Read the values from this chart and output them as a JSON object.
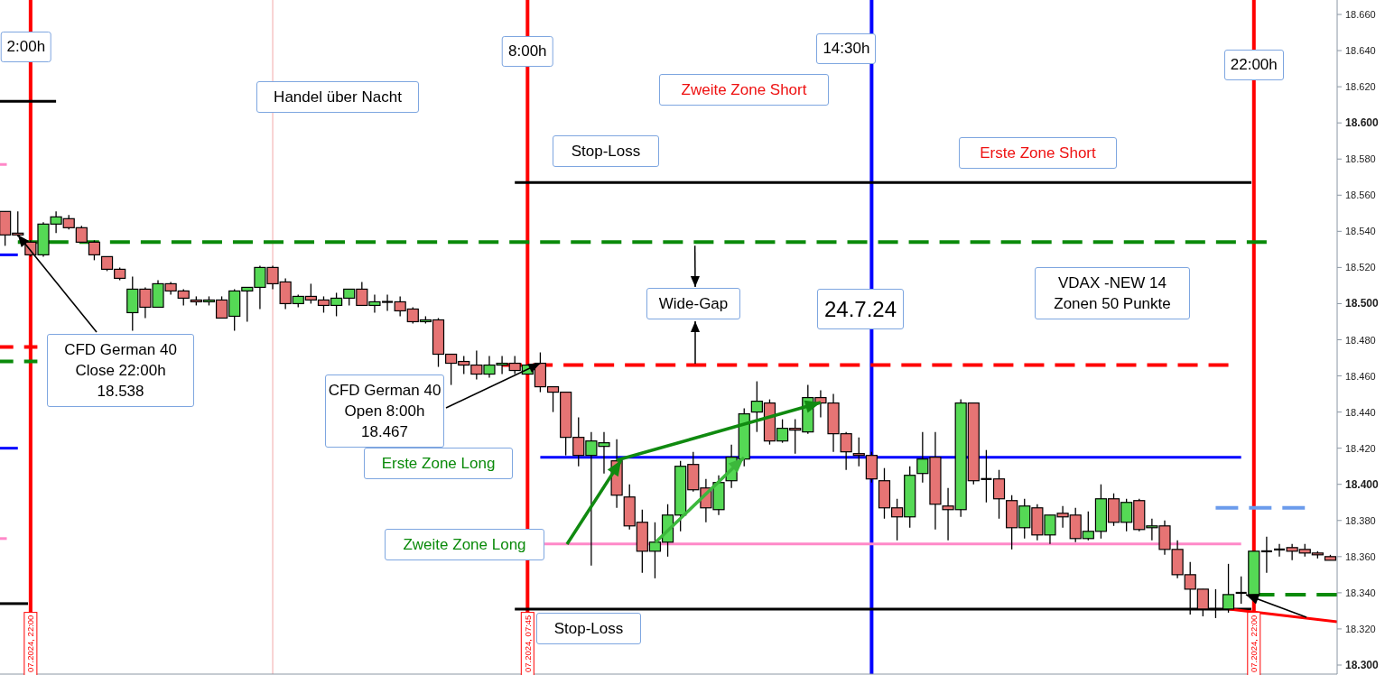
{
  "chart_data": {
    "type": "candlestick",
    "xlim": [
      "2024-07-23T21:24",
      "2024-07-24T23:38"
    ],
    "ylim": [
      18295,
      18668
    ],
    "xticks": [
      {
        "value": "2024-07-23T22:00",
        "label": "07.2024, 22:00"
      },
      {
        "value": "2024-07-24T07:45",
        "label": "07.2024, 07:45"
      },
      {
        "value": "2024-07-24T22:00",
        "label": "07.2024, 22:00"
      }
    ],
    "yticks": [
      {
        "value": 18300,
        "label": "18.300"
      },
      {
        "value": 18320,
        "label": "18.320"
      },
      {
        "value": 18340,
        "label": "18.340"
      },
      {
        "value": 18360,
        "label": "18.360"
      },
      {
        "value": 18380,
        "label": "18.380"
      },
      {
        "value": 18400,
        "label": "18.400"
      },
      {
        "value": 18420,
        "label": "18.420"
      },
      {
        "value": 18440,
        "label": "18.440"
      },
      {
        "value": 18460,
        "label": "18.460"
      },
      {
        "value": 18480,
        "label": "18.480"
      },
      {
        "value": 18500,
        "label": "18.500"
      },
      {
        "value": 18520,
        "label": "18.520"
      },
      {
        "value": 18540,
        "label": "18.540"
      },
      {
        "value": 18560,
        "label": "18.560"
      },
      {
        "value": 18580,
        "label": "18.580"
      },
      {
        "value": 18600,
        "label": "18.600"
      },
      {
        "value": 18620,
        "label": "18.620"
      },
      {
        "value": 18640,
        "label": "18.640"
      },
      {
        "value": 18660,
        "label": "18.660"
      }
    ],
    "series": [
      {
        "type": "line",
        "x": [
          "2024-07-23T21:24",
          "2024-07-23T22:30"
        ],
        "values": [
          18612,
          18612
        ],
        "color": "#000000",
        "line_style": "solid"
      },
      {
        "type": "line",
        "x": [
          "2024-07-23T21:24",
          "2024-07-23T21:32"
        ],
        "values": [
          18577,
          18577
        ],
        "color": "#ff88c8",
        "line_style": "solid"
      },
      {
        "type": "line",
        "x": [
          "2024-07-23T21:24",
          "2024-07-23T21:45"
        ],
        "values": [
          18527,
          18527
        ],
        "color": "#0000ff",
        "line_style": "solid"
      },
      {
        "type": "line",
        "x": [
          "2024-07-23T21:24",
          "2024-07-23T22:08"
        ],
        "values": [
          18476,
          18476
        ],
        "color": "#ff0000",
        "line_style": "dashed"
      },
      {
        "type": "line",
        "x": [
          "2024-07-23T21:24",
          "2024-07-23T22:08"
        ],
        "values": [
          18468,
          18468
        ],
        "color": "#0a8a0a",
        "line_style": "dashed"
      },
      {
        "type": "line",
        "x": [
          "2024-07-23T21:24",
          "2024-07-23T21:45"
        ],
        "values": [
          18420,
          18420
        ],
        "color": "#0000ff",
        "line_style": "solid"
      },
      {
        "type": "line",
        "x": [
          "2024-07-23T21:24",
          "2024-07-23T21:32"
        ],
        "values": [
          18370,
          18370
        ],
        "color": "#ff88c8",
        "line_style": "solid"
      },
      {
        "type": "line",
        "x": [
          "2024-07-23T21:24",
          "2024-07-23T21:57"
        ],
        "values": [
          18334,
          18334
        ],
        "color": "#000000",
        "line_style": "solid"
      },
      {
        "type": "line",
        "x": [
          "2024-07-23T21:45",
          "2024-07-24T22:15"
        ],
        "values": [
          18534,
          18534
        ],
        "color": "#0a8a0a",
        "line_style": "dashed"
      },
      {
        "type": "line",
        "x": [
          "2024-07-24T07:30",
          "2024-07-24T21:57"
        ],
        "values": [
          18567,
          18567
        ],
        "color": "#000000",
        "line_style": "solid"
      },
      {
        "type": "line",
        "x": [
          "2024-07-24T07:15",
          "2024-07-24T21:30"
        ],
        "values": [
          18466,
          18466
        ],
        "color": "#ff0000",
        "line_style": "dashed"
      },
      {
        "type": "line",
        "x": [
          "2024-07-24T08:00",
          "2024-07-24T21:45"
        ],
        "values": [
          18415,
          18415
        ],
        "color": "#0000ff",
        "line_style": "solid"
      },
      {
        "type": "line",
        "x": [
          "2024-07-24T08:05",
          "2024-07-24T21:45"
        ],
        "values": [
          18367,
          18367
        ],
        "color": "#ff88c8",
        "line_style": "solid"
      },
      {
        "type": "line",
        "x": [
          "2024-07-24T07:30",
          "2024-07-24T21:57"
        ],
        "values": [
          18331,
          18331
        ],
        "color": "#000000",
        "line_style": "solid"
      },
      {
        "type": "line",
        "x": [
          "2024-07-24T21:15",
          "2024-07-24T23:00"
        ],
        "values": [
          18387,
          18387
        ],
        "color": "#6b9bec",
        "line_style": "dashed"
      },
      {
        "type": "line",
        "x": [
          "2024-07-24T22:00",
          "2024-07-24T23:38"
        ],
        "values": [
          18339,
          18339
        ],
        "color": "#0a8a0a",
        "line_style": "dashed"
      },
      {
        "type": "line",
        "x": [
          "2024-07-24T21:31",
          "2024-07-24T23:38"
        ],
        "values": [
          18331,
          18324
        ],
        "color": "#ff0000",
        "line_style": "solid"
      },
      {
        "type": "candlestick",
        "x": [
          "2024-07-23T21:30",
          "2024-07-23T21:45",
          "2024-07-23T22:00",
          "2024-07-23T22:15",
          "2024-07-23T22:30",
          "2024-07-23T22:45",
          "2024-07-23T23:00",
          "2024-07-23T23:15",
          "2024-07-23T23:30",
          "2024-07-23T23:45",
          "2024-07-24T00:00",
          "2024-07-24T00:15",
          "2024-07-24T00:30",
          "2024-07-24T00:45",
          "2024-07-24T01:00",
          "2024-07-24T01:15",
          "2024-07-24T01:30",
          "2024-07-24T01:45",
          "2024-07-24T02:00",
          "2024-07-24T02:15",
          "2024-07-24T02:30",
          "2024-07-24T02:45",
          "2024-07-24T03:00",
          "2024-07-24T03:15",
          "2024-07-24T03:30",
          "2024-07-24T03:45",
          "2024-07-24T04:00",
          "2024-07-24T04:15",
          "2024-07-24T04:30",
          "2024-07-24T04:45",
          "2024-07-24T05:00",
          "2024-07-24T05:15",
          "2024-07-24T05:30",
          "2024-07-24T05:45",
          "2024-07-24T06:00",
          "2024-07-24T06:15",
          "2024-07-24T06:30",
          "2024-07-24T06:45",
          "2024-07-24T07:00",
          "2024-07-24T07:15",
          "2024-07-24T07:30",
          "2024-07-24T07:45",
          "2024-07-24T08:00",
          "2024-07-24T08:15",
          "2024-07-24T08:30",
          "2024-07-24T08:45",
          "2024-07-24T09:00",
          "2024-07-24T09:15",
          "2024-07-24T09:30",
          "2024-07-24T09:45",
          "2024-07-24T10:00",
          "2024-07-24T10:15",
          "2024-07-24T10:30",
          "2024-07-24T10:45",
          "2024-07-24T11:00",
          "2024-07-24T11:15",
          "2024-07-24T11:30",
          "2024-07-24T11:45",
          "2024-07-24T12:00",
          "2024-07-24T12:15",
          "2024-07-24T12:30",
          "2024-07-24T12:45",
          "2024-07-24T13:00",
          "2024-07-24T13:15",
          "2024-07-24T13:30",
          "2024-07-24T13:45",
          "2024-07-24T14:00",
          "2024-07-24T14:15",
          "2024-07-24T14:30",
          "2024-07-24T14:45",
          "2024-07-24T15:00",
          "2024-07-24T15:15",
          "2024-07-24T15:30",
          "2024-07-24T15:45",
          "2024-07-24T16:00",
          "2024-07-24T16:15",
          "2024-07-24T16:30",
          "2024-07-24T16:45",
          "2024-07-24T17:00",
          "2024-07-24T17:15",
          "2024-07-24T17:30",
          "2024-07-24T17:45",
          "2024-07-24T18:00",
          "2024-07-24T18:15",
          "2024-07-24T18:30",
          "2024-07-24T18:45",
          "2024-07-24T19:00",
          "2024-07-24T19:15",
          "2024-07-24T19:30",
          "2024-07-24T19:45",
          "2024-07-24T20:00",
          "2024-07-24T20:15",
          "2024-07-24T20:30",
          "2024-07-24T20:45",
          "2024-07-24T21:00",
          "2024-07-24T21:15",
          "2024-07-24T21:30",
          "2024-07-24T21:45",
          "2024-07-24T22:00",
          "2024-07-24T22:15",
          "2024-07-24T22:30",
          "2024-07-24T22:45",
          "2024-07-24T23:00",
          "2024-07-24T23:15",
          "2024-07-24T23:30"
        ],
        "ohlc": [
          [
            18551,
            18551,
            18532,
            18538
          ],
          [
            18539,
            18551,
            18537,
            18538
          ],
          [
            18534,
            18535,
            18526,
            18527
          ],
          [
            18527,
            18545,
            18526,
            18544
          ],
          [
            18544,
            18551,
            18539,
            18548
          ],
          [
            18547,
            18549,
            18541,
            18542
          ],
          [
            18542,
            18543,
            18534,
            18534
          ],
          [
            18534,
            18535,
            18524,
            18527
          ],
          [
            18526,
            18526,
            18518,
            18519
          ],
          [
            18519,
            18520,
            18513,
            18514
          ],
          [
            18495,
            18515,
            18485,
            18508
          ],
          [
            18508,
            18509,
            18492,
            18498
          ],
          [
            18498,
            18513,
            18498,
            18511
          ],
          [
            18511,
            18512,
            18505,
            18507
          ],
          [
            18507,
            18508,
            18499,
            18503
          ],
          [
            18502,
            18504,
            18499,
            18501
          ],
          [
            18501,
            18504,
            18499,
            18502
          ],
          [
            18502,
            18504,
            18492,
            18492
          ],
          [
            18493,
            18508,
            18485,
            18507
          ],
          [
            18507,
            18509,
            18490,
            18509
          ],
          [
            18509,
            18521,
            18497,
            18520
          ],
          [
            18520,
            18521,
            18508,
            18511
          ],
          [
            18512,
            18514,
            18497,
            18500
          ],
          [
            18500,
            18505,
            18498,
            18504
          ],
          [
            18504,
            18511,
            18500,
            18502
          ],
          [
            18502,
            18504,
            18495,
            18499
          ],
          [
            18499,
            18506,
            18493,
            18503
          ],
          [
            18503,
            18508,
            18499,
            18508
          ],
          [
            18508,
            18512,
            18499,
            18499
          ],
          [
            18499,
            18505,
            18495,
            18501
          ],
          [
            18501,
            18505,
            18496,
            18501
          ],
          [
            18501,
            18504,
            18493,
            18496
          ],
          [
            18497,
            18498,
            18489,
            18490
          ],
          [
            18490,
            18493,
            18489,
            18491
          ],
          [
            18491,
            18492,
            18465,
            18472
          ],
          [
            18472,
            18472,
            18455,
            18467
          ],
          [
            18468,
            18471,
            18461,
            18466
          ],
          [
            18466,
            18474,
            18458,
            18461
          ],
          [
            18461,
            18471,
            18459,
            18466
          ],
          [
            18466,
            18471,
            18461,
            18467
          ],
          [
            18467,
            18471,
            18461,
            18463
          ],
          [
            18461,
            18466,
            18461,
            18466
          ],
          [
            18467,
            18473,
            18451,
            18454
          ],
          [
            18454,
            18454,
            18440,
            18451
          ],
          [
            18451,
            18451,
            18416,
            18426
          ],
          [
            18426,
            18437,
            18410,
            18416
          ],
          [
            18416,
            18429,
            18355,
            18424
          ],
          [
            18421,
            18429,
            18406,
            18423
          ],
          [
            18413,
            18425,
            18387,
            18394
          ],
          [
            18393,
            18400,
            18375,
            18377
          ],
          [
            18379,
            18386,
            18351,
            18363
          ],
          [
            18363,
            18379,
            18348,
            18368
          ],
          [
            18368,
            18389,
            18360,
            18383
          ],
          [
            18383,
            18413,
            18374,
            18410
          ],
          [
            18411,
            18418,
            18396,
            18397
          ],
          [
            18398,
            18403,
            18379,
            18387
          ],
          [
            18386,
            18405,
            18383,
            18401
          ],
          [
            18402,
            18422,
            18398,
            18415
          ],
          [
            18414,
            18442,
            18410,
            18439
          ],
          [
            18440,
            18457,
            18429,
            18446
          ],
          [
            18445,
            18447,
            18422,
            18424
          ],
          [
            18424,
            18436,
            18423,
            18431
          ],
          [
            18431,
            18436,
            18417,
            18430
          ],
          [
            18429,
            18455,
            18428,
            18448
          ],
          [
            18448,
            18452,
            18437,
            18445
          ],
          [
            18445,
            18450,
            18418,
            18428
          ],
          [
            18428,
            18429,
            18408,
            18418
          ],
          [
            18417,
            18426,
            18410,
            18416
          ],
          [
            18416,
            18418,
            18401,
            18403
          ],
          [
            18402,
            18409,
            18381,
            18387
          ],
          [
            18387,
            18392,
            18369,
            18382
          ],
          [
            18382,
            18410,
            18376,
            18405
          ],
          [
            18406,
            18429,
            18401,
            18414
          ],
          [
            18415,
            18429,
            18375,
            18389
          ],
          [
            18388,
            18398,
            18369,
            18386
          ],
          [
            18386,
            18447,
            18382,
            18445
          ],
          [
            18445,
            18445,
            18400,
            18402
          ],
          [
            18403,
            18419,
            18390,
            18403
          ],
          [
            18403,
            18408,
            18381,
            18392
          ],
          [
            18391,
            18394,
            18364,
            18376
          ],
          [
            18376,
            18392,
            18370,
            18388
          ],
          [
            18387,
            18389,
            18369,
            18372
          ],
          [
            18372,
            18383,
            18367,
            18383
          ],
          [
            18384,
            18388,
            18376,
            18382
          ],
          [
            18383,
            18387,
            18368,
            18370
          ],
          [
            18370,
            18385,
            18369,
            18374
          ],
          [
            18374,
            18400,
            18370,
            18392
          ],
          [
            18392,
            18395,
            18377,
            18379
          ],
          [
            18379,
            18392,
            18374,
            18390
          ],
          [
            18391,
            18392,
            18374,
            18375
          ],
          [
            18376,
            18381,
            18369,
            18377
          ],
          [
            18377,
            18380,
            18361,
            18364
          ],
          [
            18364,
            18369,
            18348,
            18350
          ],
          [
            18350,
            18357,
            18328,
            18342
          ],
          [
            18342,
            18342,
            18327,
            18331
          ],
          [
            18331,
            18342,
            18326,
            18331
          ],
          [
            18331,
            18356,
            18329,
            18339
          ],
          [
            18340,
            18349,
            18334,
            18340
          ],
          [
            18339,
            18363,
            18339,
            18363
          ],
          [
            18363,
            18371,
            18351,
            18363
          ],
          [
            18364,
            18367,
            18360,
            18364
          ],
          [
            18365,
            18367,
            18358,
            18363
          ],
          [
            18364,
            18367,
            18360,
            18362
          ],
          [
            18362,
            18363,
            18359,
            18361
          ],
          [
            18360,
            18361,
            18358,
            18358
          ]
        ],
        "colors": [
          "#e67474",
          "#e67474",
          "#e67474",
          "#55d955",
          "#55d955",
          "#e67474",
          "#e67474",
          "#e67474",
          "#e67474",
          "#e67474",
          "#55d955",
          "#e67474",
          "#55d955",
          "#e67474",
          "#e67474",
          "#e67474",
          "#55d955",
          "#e67474",
          "#55d955",
          "#55d955",
          "#55d955",
          "#e67474",
          "#e67474",
          "#55d955",
          "#e67474",
          "#e67474",
          "#55d955",
          "#55d955",
          "#e67474",
          "#55d955",
          "#000000",
          "#e67474",
          "#e67474",
          "#55d955",
          "#e67474",
          "#e67474",
          "#e67474",
          "#e67474",
          "#55d955",
          "#55d955",
          "#e67474",
          "#55d955",
          "#e67474",
          "#e67474",
          "#e67474",
          "#e67474",
          "#55d955",
          "#55d955",
          "#e67474",
          "#e67474",
          "#e67474",
          "#55d955",
          "#55d955",
          "#55d955",
          "#e67474",
          "#e67474",
          "#55d955",
          "#55d955",
          "#55d955",
          "#55d955",
          "#e67474",
          "#55d955",
          "#e67474",
          "#55d955",
          "#e67474",
          "#e67474",
          "#e67474",
          "#e67474",
          "#e67474",
          "#e67474",
          "#e67474",
          "#55d955",
          "#55d955",
          "#e67474",
          "#e67474",
          "#55d955",
          "#e67474",
          "#000000",
          "#e67474",
          "#e67474",
          "#55d955",
          "#e67474",
          "#55d955",
          "#e67474",
          "#e67474",
          "#55d955",
          "#55d955",
          "#e67474",
          "#55d955",
          "#e67474",
          "#55d955",
          "#e67474",
          "#e67474",
          "#e67474",
          "#e67474",
          "#000000",
          "#55d955",
          "#000000",
          "#55d955",
          "#000000",
          "#000000",
          "#e67474",
          "#e67474",
          "#e67474",
          "#e67474"
        ]
      }
    ],
    "ref_lines": [
      {
        "axis": "x",
        "value": "2024-07-23T22:00",
        "label": "2:00h",
        "color": "#ff0000"
      },
      {
        "axis": "x",
        "value": "2024-07-24T02:45",
        "color": "#f2a8a8"
      },
      {
        "axis": "x",
        "value": "2024-07-24T07:45",
        "label": "8:00h",
        "color": "#ff0000"
      },
      {
        "axis": "x",
        "value": "2024-07-24T14:30",
        "label": "14:30h",
        "color": "#0000ff"
      },
      {
        "axis": "x",
        "value": "2024-07-24T22:00",
        "label": "22:00h",
        "color": "#ff0000"
      }
    ],
    "annotations": [
      "Handel über Nacht",
      "Zweite Zone Short",
      "Stop-Loss",
      "Erste Zone Short",
      {
        "text": "Wide-Gap",
        "x": "2024-07-24T11:02",
        "y": 18534
      },
      "24.7.24",
      "VDAX -NEW 14\nZonen 50 Punkte",
      {
        "text": "CFD German 40\nClose 22:00h\n18.538",
        "x": "2024-07-23T21:45",
        "y": 18538
      },
      {
        "text": "CFD German 40\nOpen 8:00h\n18.467",
        "x": "2024-07-24T08:00",
        "y": 18467
      },
      "Erste Zone Long",
      "Zweite Zone Long",
      "Stop-Loss"
    ]
  }
}
